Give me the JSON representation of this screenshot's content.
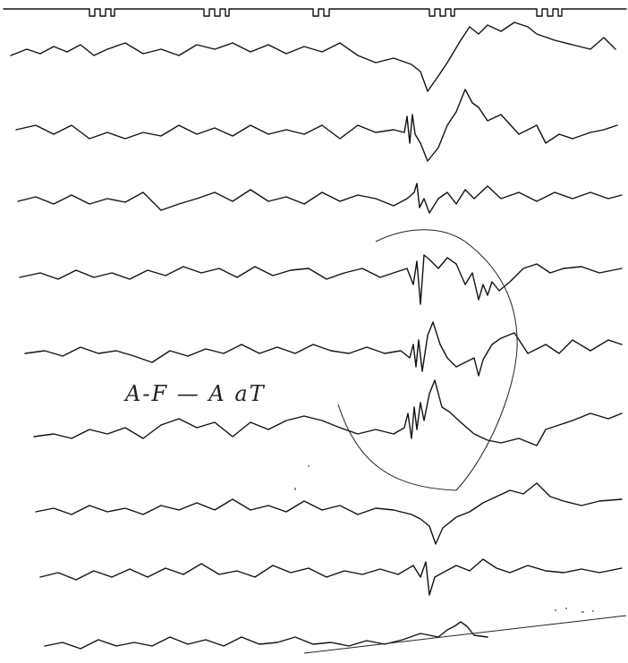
{
  "annotation": "A-F — A aT"
}
